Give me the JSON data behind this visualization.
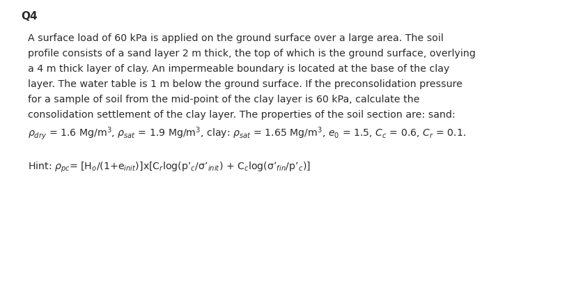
{
  "background_color": "#ffffff",
  "title": "Q4",
  "title_fontsize": 11,
  "title_fontweight": "bold",
  "body_fontsize": 10.2,
  "text_color": "#2a2a2a",
  "body_lines": [
    "A surface load of 60 kPa is applied on the ground surface over a large area. The soil",
    "profile consists of a sand layer 2 m thick, the top of which is the ground surface, overlying",
    "a 4 m thick layer of clay. An impermeable boundary is located at the base of the clay",
    "layer. The water table is 1 m below the ground surface. If the preconsolidation pressure",
    "for a sample of soil from the mid-point of the clay layer is 60 kPa, calculate the",
    "consolidation settlement of the clay layer. The properties of the soil section are: sand:"
  ]
}
